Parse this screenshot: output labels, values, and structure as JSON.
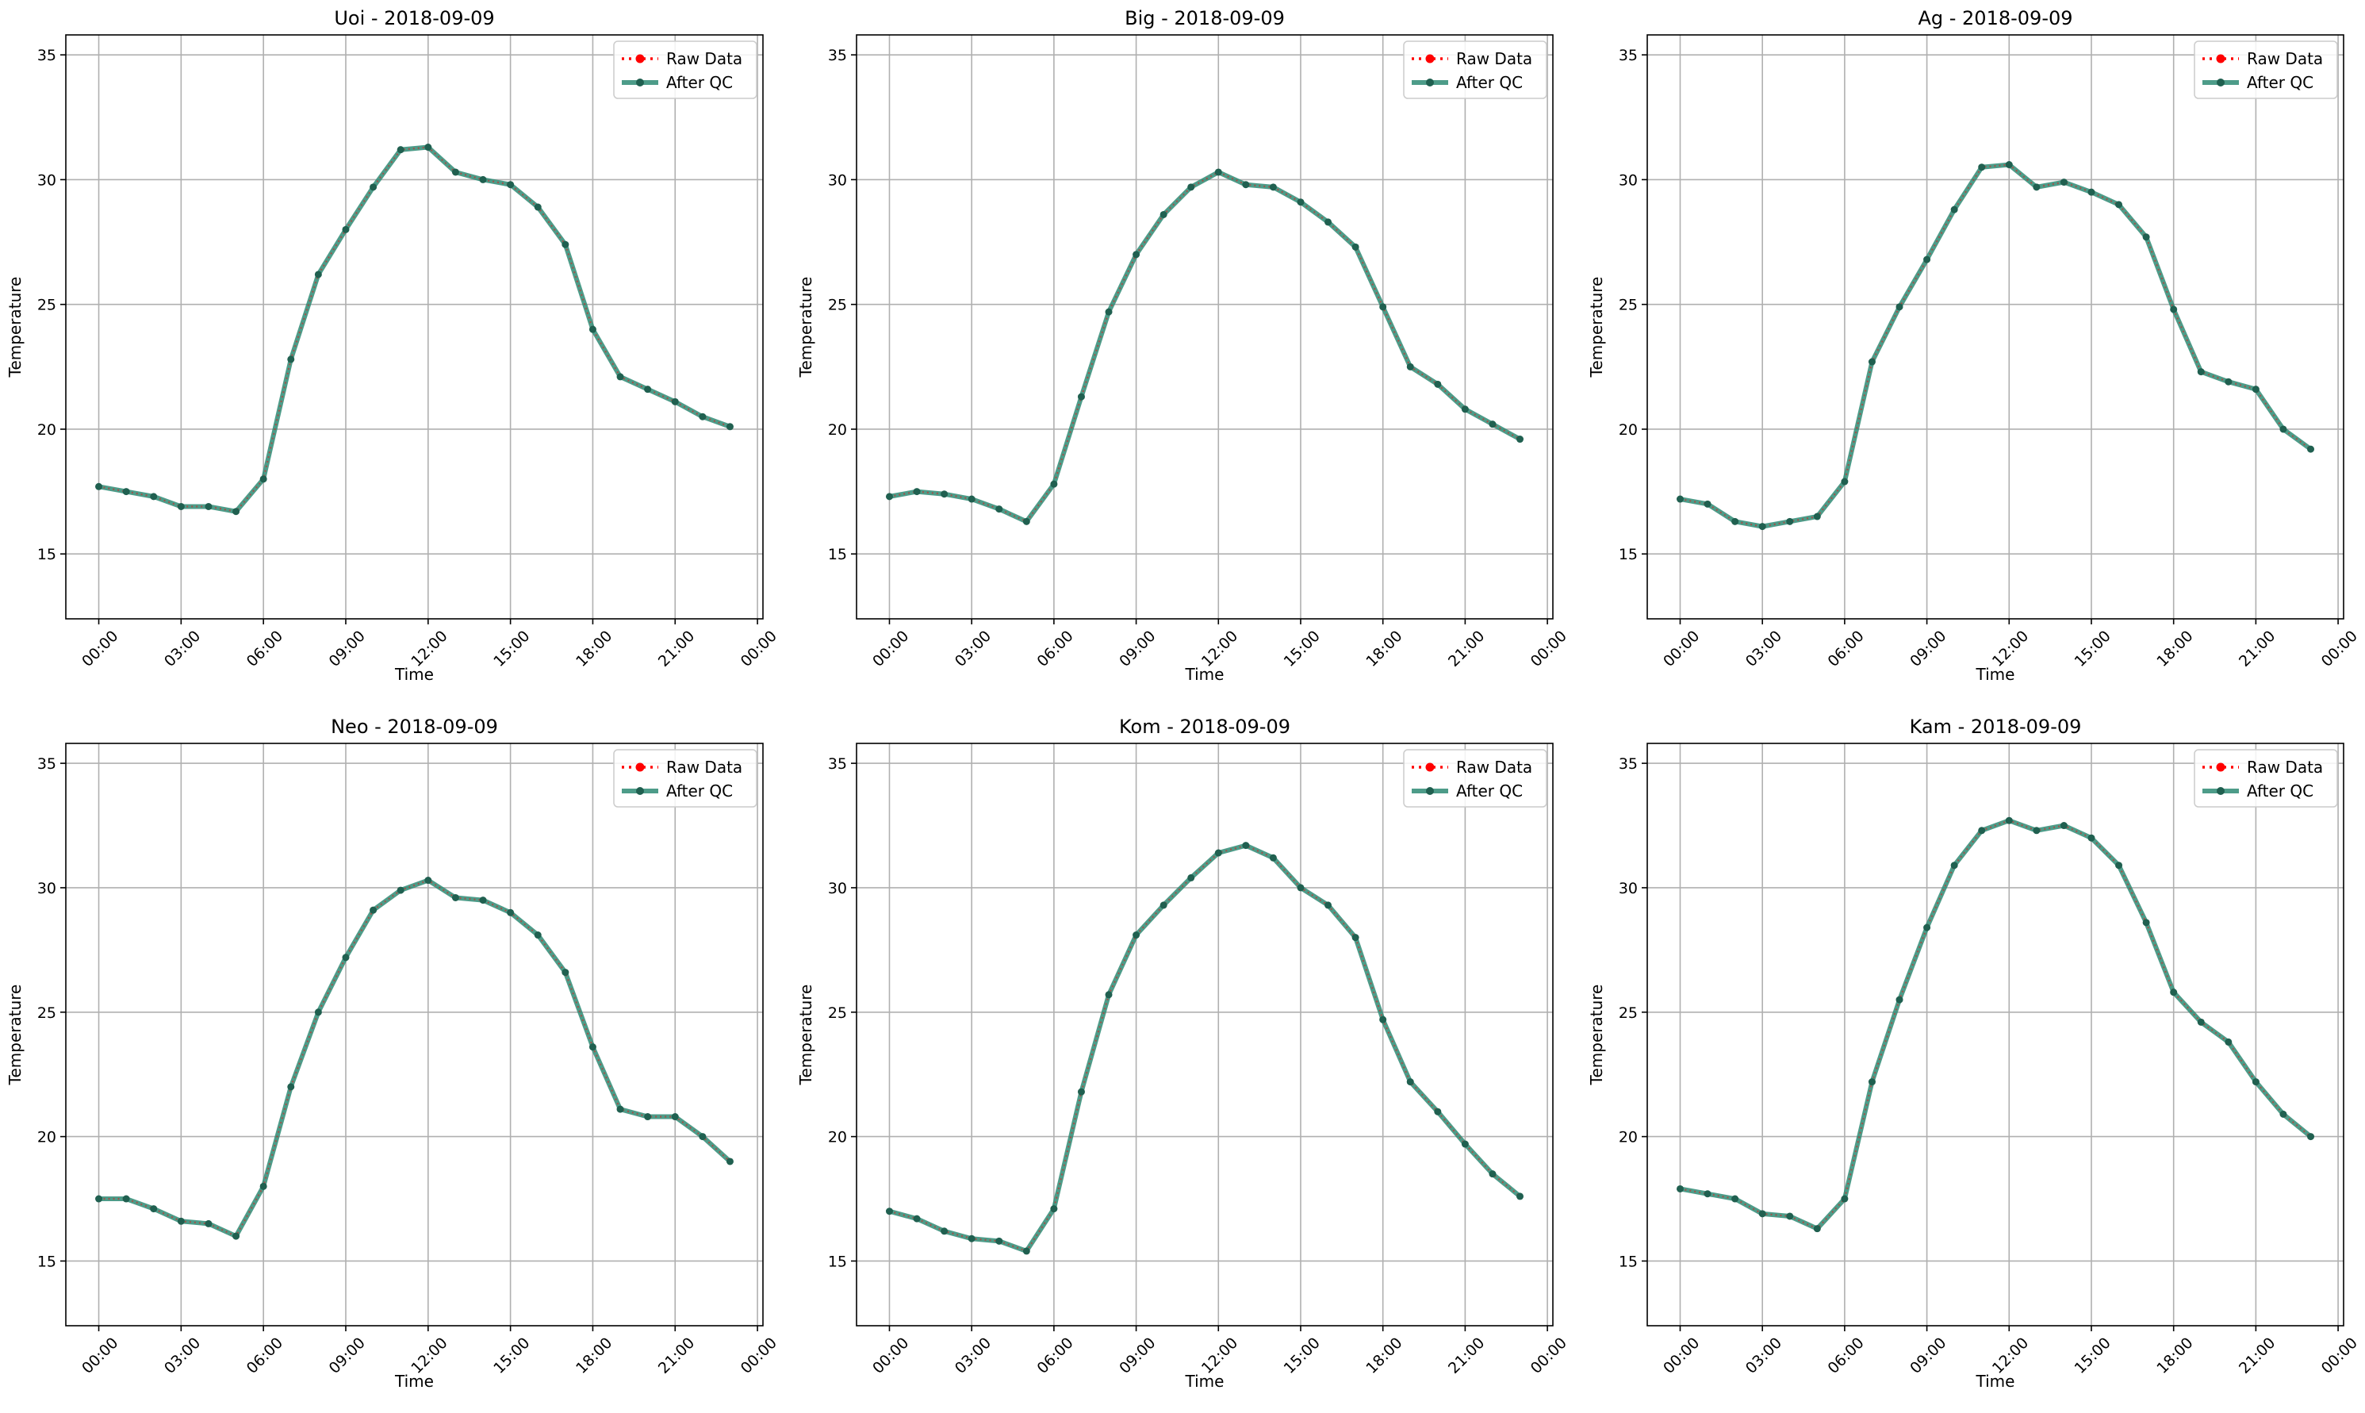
{
  "figure": {
    "x_tick_labels": [
      "00:00",
      "03:00",
      "06:00",
      "09:00",
      "12:00",
      "15:00",
      "18:00",
      "21:00",
      "00:00"
    ],
    "y_ticks": [
      15,
      20,
      25,
      30,
      35
    ],
    "xlabel": "Time",
    "ylabel": "Temperature",
    "legend": [
      "Raw Data",
      "After QC"
    ],
    "colors": {
      "raw": "#ff0000",
      "qc": "#2e8b74",
      "qc_marker": "#206050",
      "grid": "#b0b0b0"
    }
  },
  "chart_data": [
    {
      "type": "line",
      "title": "Uoi - 2018-09-09",
      "xlabel": "Time",
      "ylabel": "Temperature",
      "x_hours": [
        0,
        1,
        2,
        3,
        4,
        5,
        6,
        7,
        8,
        9,
        10,
        11,
        12,
        13,
        14,
        15,
        16,
        17,
        18,
        19,
        20,
        21,
        22,
        23
      ],
      "ylim": [
        12.4,
        35.8
      ],
      "xlim_hours": [
        -1.2,
        24.2
      ],
      "legend_position": "top-right",
      "grid": true,
      "series": [
        {
          "name": "Raw Data",
          "style": "dotted-red",
          "values": [
            17.7,
            17.5,
            17.3,
            16.9,
            16.9,
            16.7,
            18.0,
            22.8,
            26.2,
            28.0,
            29.7,
            31.2,
            31.3,
            30.3,
            30.0,
            29.8,
            28.9,
            27.4,
            24.0,
            22.1,
            21.6,
            21.1,
            20.5,
            20.1
          ]
        },
        {
          "name": "After QC",
          "style": "solid-green",
          "values": [
            17.7,
            17.5,
            17.3,
            16.9,
            16.9,
            16.7,
            18.0,
            22.8,
            26.2,
            28.0,
            29.7,
            31.2,
            31.3,
            30.3,
            30.0,
            29.8,
            28.9,
            27.4,
            24.0,
            22.1,
            21.6,
            21.1,
            20.5,
            20.1
          ]
        }
      ]
    },
    {
      "type": "line",
      "title": "Big - 2018-09-09",
      "xlabel": "Time",
      "ylabel": "Temperature",
      "x_hours": [
        0,
        1,
        2,
        3,
        4,
        5,
        6,
        7,
        8,
        9,
        10,
        11,
        12,
        13,
        14,
        15,
        16,
        17,
        18,
        19,
        20,
        21,
        22,
        23
      ],
      "ylim": [
        12.4,
        35.8
      ],
      "xlim_hours": [
        -1.2,
        24.2
      ],
      "legend_position": "top-right",
      "grid": true,
      "series": [
        {
          "name": "Raw Data",
          "style": "dotted-red",
          "values": [
            17.3,
            17.5,
            17.4,
            17.2,
            16.8,
            16.3,
            17.8,
            21.3,
            24.7,
            27.0,
            28.6,
            29.7,
            30.3,
            29.8,
            29.7,
            29.1,
            28.3,
            27.3,
            24.9,
            22.5,
            21.8,
            20.8,
            20.2,
            19.6
          ]
        },
        {
          "name": "After QC",
          "style": "solid-green",
          "values": [
            17.3,
            17.5,
            17.4,
            17.2,
            16.8,
            16.3,
            17.8,
            21.3,
            24.7,
            27.0,
            28.6,
            29.7,
            30.3,
            29.8,
            29.7,
            29.1,
            28.3,
            27.3,
            24.9,
            22.5,
            21.8,
            20.8,
            20.2,
            19.6
          ]
        }
      ]
    },
    {
      "type": "line",
      "title": "Ag - 2018-09-09",
      "xlabel": "Time",
      "ylabel": "Temperature",
      "x_hours": [
        0,
        1,
        2,
        3,
        4,
        5,
        6,
        7,
        8,
        9,
        10,
        11,
        12,
        13,
        14,
        15,
        16,
        17,
        18,
        19,
        20,
        21,
        22,
        23
      ],
      "ylim": [
        12.4,
        35.8
      ],
      "xlim_hours": [
        -1.2,
        24.2
      ],
      "legend_position": "top-right",
      "grid": true,
      "series": [
        {
          "name": "Raw Data",
          "style": "dotted-red",
          "values": [
            17.2,
            17.0,
            16.3,
            16.1,
            16.3,
            16.5,
            17.9,
            22.7,
            24.9,
            26.8,
            28.8,
            30.5,
            30.6,
            29.7,
            29.9,
            29.5,
            29.0,
            27.7,
            24.8,
            22.3,
            21.9,
            21.6,
            20.0,
            19.2
          ]
        },
        {
          "name": "After QC",
          "style": "solid-green",
          "values": [
            17.2,
            17.0,
            16.3,
            16.1,
            16.3,
            16.5,
            17.9,
            22.7,
            24.9,
            26.8,
            28.8,
            30.5,
            30.6,
            29.7,
            29.9,
            29.5,
            29.0,
            27.7,
            24.8,
            22.3,
            21.9,
            21.6,
            20.0,
            19.2
          ]
        }
      ]
    },
    {
      "type": "line",
      "title": "Neo - 2018-09-09",
      "xlabel": "Time",
      "ylabel": "Temperature",
      "x_hours": [
        0,
        1,
        2,
        3,
        4,
        5,
        6,
        7,
        8,
        9,
        10,
        11,
        12,
        13,
        14,
        15,
        16,
        17,
        18,
        19,
        20,
        21,
        22,
        23
      ],
      "ylim": [
        12.4,
        35.8
      ],
      "xlim_hours": [
        -1.2,
        24.2
      ],
      "legend_position": "top-right",
      "grid": true,
      "series": [
        {
          "name": "Raw Data",
          "style": "dotted-red",
          "values": [
            17.5,
            17.5,
            17.1,
            16.6,
            16.5,
            16.0,
            18.0,
            22.0,
            25.0,
            27.2,
            29.1,
            29.9,
            30.3,
            29.6,
            29.5,
            29.0,
            28.1,
            26.6,
            23.6,
            21.1,
            20.8,
            20.8,
            20.0,
            19.0
          ]
        },
        {
          "name": "After QC",
          "style": "solid-green",
          "values": [
            17.5,
            17.5,
            17.1,
            16.6,
            16.5,
            16.0,
            18.0,
            22.0,
            25.0,
            27.2,
            29.1,
            29.9,
            30.3,
            29.6,
            29.5,
            29.0,
            28.1,
            26.6,
            23.6,
            21.1,
            20.8,
            20.8,
            20.0,
            19.0
          ]
        }
      ]
    },
    {
      "type": "line",
      "title": "Kom - 2018-09-09",
      "xlabel": "Time",
      "ylabel": "Temperature",
      "x_hours": [
        0,
        1,
        2,
        3,
        4,
        5,
        6,
        7,
        8,
        9,
        10,
        11,
        12,
        13,
        14,
        15,
        16,
        17,
        18,
        19,
        20,
        21,
        22,
        23
      ],
      "ylim": [
        12.4,
        35.8
      ],
      "xlim_hours": [
        -1.2,
        24.2
      ],
      "legend_position": "top-right",
      "grid": true,
      "series": [
        {
          "name": "Raw Data",
          "style": "dotted-red",
          "values": [
            17.0,
            16.7,
            16.2,
            15.9,
            15.8,
            15.4,
            17.1,
            21.8,
            25.7,
            28.1,
            29.3,
            30.4,
            31.4,
            31.7,
            31.2,
            30.0,
            29.3,
            28.0,
            24.7,
            22.2,
            21.0,
            19.7,
            18.5,
            17.6
          ]
        },
        {
          "name": "After QC",
          "style": "solid-green",
          "values": [
            17.0,
            16.7,
            16.2,
            15.9,
            15.8,
            15.4,
            17.1,
            21.8,
            25.7,
            28.1,
            29.3,
            30.4,
            31.4,
            31.7,
            31.2,
            30.0,
            29.3,
            28.0,
            24.7,
            22.2,
            21.0,
            19.7,
            18.5,
            17.6
          ]
        }
      ]
    },
    {
      "type": "line",
      "title": "Kam - 2018-09-09",
      "xlabel": "Time",
      "ylabel": "Temperature",
      "x_hours": [
        0,
        1,
        2,
        3,
        4,
        5,
        6,
        7,
        8,
        9,
        10,
        11,
        12,
        13,
        14,
        15,
        16,
        17,
        18,
        19,
        20,
        21,
        22,
        23
      ],
      "ylim": [
        12.4,
        35.8
      ],
      "xlim_hours": [
        -1.2,
        24.2
      ],
      "legend_position": "top-right",
      "grid": true,
      "series": [
        {
          "name": "Raw Data",
          "style": "dotted-red",
          "values": [
            17.9,
            17.7,
            17.5,
            16.9,
            16.8,
            16.3,
            17.5,
            22.2,
            25.5,
            28.4,
            30.9,
            32.3,
            32.7,
            32.3,
            32.5,
            32.0,
            30.9,
            28.6,
            25.8,
            24.6,
            23.8,
            22.2,
            20.9,
            20.0
          ]
        },
        {
          "name": "After QC",
          "style": "solid-green",
          "values": [
            17.9,
            17.7,
            17.5,
            16.9,
            16.8,
            16.3,
            17.5,
            22.2,
            25.5,
            28.4,
            30.9,
            32.3,
            32.7,
            32.3,
            32.5,
            32.0,
            30.9,
            28.6,
            25.8,
            24.6,
            23.8,
            22.2,
            20.9,
            20.0
          ]
        }
      ]
    }
  ]
}
